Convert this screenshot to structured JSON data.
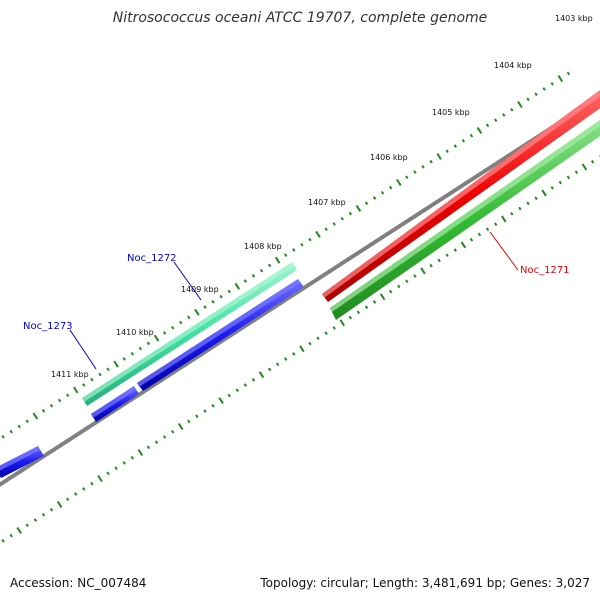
{
  "title": "Nitrosococcus oceani ATCC 19707, complete genome",
  "accession_label": "Accession: NC_007484",
  "summary_label": "Topology: circular; Length: 3,481,691 bp; Genes: 3,027",
  "ticks": [
    "1403 kbp",
    "1404 kbp",
    "1405 kbp",
    "1406 kbp",
    "1407 kbp",
    "1408 kbp",
    "1409 kbp",
    "1410 kbp",
    "1411 kbp"
  ],
  "genes": [
    {
      "name": "Noc_1271",
      "color": "#e60000"
    },
    {
      "name": "Noc_1272",
      "color": "#0000cc"
    },
    {
      "name": "Noc_1273",
      "color": "#0000cc"
    }
  ],
  "colors": {
    "backbone": "#808080",
    "cds_forward": "#ee0000",
    "cds_reverse": "#1a1aee",
    "orf_forward": "#40e0a0",
    "orf_reverse": "#33bb33",
    "tick_marks": "#228822"
  }
}
